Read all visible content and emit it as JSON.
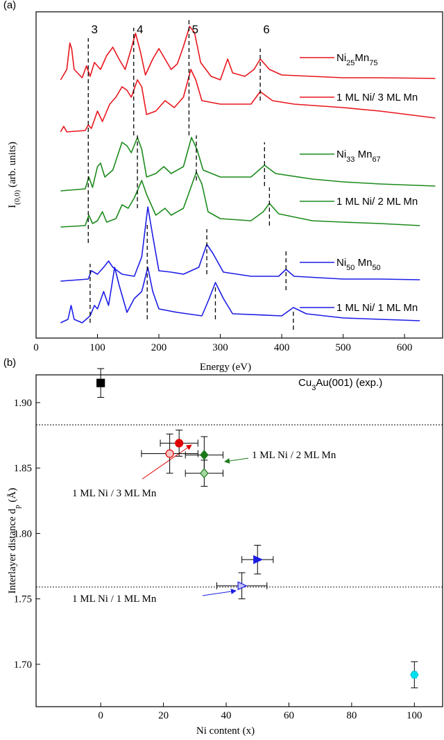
{
  "chart_data": [
    {
      "type": "line",
      "panel": "(a)",
      "xlabel": "Energy (eV)",
      "ylabel": "I(0,0) (arb. units)",
      "xlim": [
        0,
        662
      ],
      "ylim": [
        0,
        470
      ],
      "xticks": [
        0,
        100,
        200,
        300,
        400,
        500,
        600
      ],
      "series": [
        {
          "name": "Ni25Mn75",
          "color": "#e8141b",
          "x": [
            40,
            50,
            55,
            58,
            62,
            75,
            82,
            88,
            95,
            105,
            115,
            125,
            135,
            145,
            155,
            162,
            170,
            178,
            190,
            200,
            210,
            220,
            230,
            240,
            250,
            258,
            268,
            285,
            300,
            312,
            320,
            340,
            355,
            365,
            380,
            400,
            450,
            500,
            560,
            650
          ],
          "values": [
            372,
            387,
            425,
            417,
            387,
            375,
            392,
            377,
            397,
            387,
            407,
            419,
            402,
            387,
            417,
            439,
            412,
            379,
            402,
            417,
            402,
            387,
            395,
            420,
            449,
            440,
            397,
            377,
            372,
            402,
            382,
            377,
            387,
            402,
            387,
            379,
            377,
            375,
            375,
            374
          ]
        },
        {
          "name": "1 ML Ni/ 3 ML Mn",
          "color": "#e8141b",
          "x": [
            40,
            45,
            50,
            80,
            85,
            90,
            100,
            108,
            120,
            130,
            140,
            148,
            155,
            165,
            172,
            180,
            195,
            210,
            225,
            240,
            252,
            260,
            270,
            300,
            350,
            365,
            385,
            420,
            500,
            560,
            650
          ],
          "values": [
            297,
            305,
            297,
            299,
            307,
            302,
            327,
            312,
            337,
            347,
            362,
            357,
            347,
            372,
            362,
            322,
            327,
            342,
            332,
            347,
            387,
            372,
            342,
            337,
            337,
            355,
            342,
            337,
            332,
            327,
            317
          ]
        },
        {
          "name": "Ni33 Mn67",
          "color": "#1a8a1a",
          "x": [
            40,
            80,
            86,
            92,
            100,
            105,
            112,
            125,
            140,
            148,
            155,
            165,
            172,
            180,
            195,
            208,
            220,
            240,
            253,
            262,
            272,
            300,
            350,
            372,
            390,
            450,
            500,
            560,
            650
          ],
          "values": [
            212,
            215,
            232,
            217,
            247,
            252,
            232,
            242,
            282,
            277,
            267,
            289,
            272,
            232,
            237,
            247,
            237,
            247,
            289,
            272,
            242,
            232,
            232,
            249,
            237,
            229,
            225,
            222,
            219
          ]
        },
        {
          "name": "1 ML Ni/ 2 ML Mn",
          "color": "#1a8a1a",
          "x": [
            40,
            80,
            86,
            92,
            100,
            108,
            115,
            130,
            140,
            150,
            160,
            172,
            180,
            195,
            210,
            220,
            240,
            261,
            270,
            280,
            300,
            350,
            370,
            380,
            395,
            450,
            500,
            560,
            625
          ],
          "values": [
            160,
            162,
            177,
            165,
            169,
            182,
            167,
            172,
            192,
            187,
            202,
            227,
            207,
            177,
            187,
            177,
            187,
            239,
            222,
            182,
            172,
            169,
            182,
            194,
            179,
            169,
            167,
            165,
            162
          ]
        },
        {
          "name": "Ni50 Mn50",
          "color": "#1c1ce6",
          "x": [
            40,
            85,
            90,
            100,
            110,
            118,
            125,
            140,
            160,
            172,
            182,
            190,
            200,
            220,
            240,
            265,
            278,
            288,
            305,
            350,
            395,
            407,
            420,
            500,
            560,
            625
          ],
          "values": [
            82,
            85,
            97,
            92,
            102,
            111,
            102,
            92,
            89,
            117,
            189,
            147,
            97,
            95,
            92,
            102,
            135,
            122,
            95,
            89,
            89,
            99,
            89,
            85,
            85,
            84
          ]
        },
        {
          "name": "1 ML Ni/ 1 ML Mn",
          "color": "#1c1ce6",
          "x": [
            40,
            52,
            57,
            62,
            75,
            88,
            95,
            100,
            110,
            118,
            128,
            135,
            148,
            160,
            172,
            182,
            190,
            200,
            230,
            270,
            282,
            292,
            305,
            320,
            400,
            419,
            440,
            500,
            560,
            625
          ],
          "values": [
            22,
            27,
            47,
            27,
            22,
            32,
            47,
            42,
            67,
            47,
            102,
            77,
            37,
            57,
            67,
            102,
            67,
            42,
            37,
            32,
            57,
            80,
            57,
            35,
            32,
            44,
            35,
            29,
            27,
            25
          ]
        }
      ],
      "peaks": [
        {
          "label": "3",
          "segments": [
            {
              "x": 85,
              "y": [
                137,
                432
              ]
            },
            {
              "x": 88,
              "y": [
                22,
                107
              ]
            }
          ]
        },
        {
          "label": "4",
          "segments": [
            {
              "x": 159,
              "y": [
                292,
                447
              ]
            },
            {
              "x": 165,
              "y": [
                187,
                292
              ]
            },
            {
              "x": 181,
              "y": [
                27,
                167
              ]
            }
          ]
        },
        {
          "label": "5",
          "segments": [
            {
              "x": 249,
              "y": [
                292,
                459
              ]
            },
            {
              "x": 261,
              "y": [
                227,
                292
              ]
            },
            {
              "x": 278,
              "y": [
                92,
                157
              ]
            },
            {
              "x": 292,
              "y": [
                27,
                77
              ]
            }
          ]
        },
        {
          "label": "6",
          "segments": [
            {
              "x": 365,
              "y": [
                342,
                417
              ]
            },
            {
              "x": 372,
              "y": [
                219,
                282
              ]
            },
            {
              "x": 380,
              "y": [
                162,
                217
              ]
            },
            {
              "x": 407,
              "y": [
                69,
                129
              ]
            },
            {
              "x": 419,
              "y": [
                12,
                42
              ]
            }
          ]
        }
      ]
    },
    {
      "type": "scatter",
      "panel": "(b)",
      "xlabel": "Ni content (x)",
      "ylabel": "Interlayer distance dp (Å)",
      "xlim": [
        -20.6,
        109
      ],
      "ylim": [
        1.6676,
        1.9212
      ],
      "xticks": [
        0,
        20,
        40,
        60,
        80,
        100
      ],
      "yticks": [
        {
          "value": 1.7,
          "label": "1.70"
        },
        1.75,
        {
          "value": 1.8,
          "label": "1.80"
        },
        1.85,
        {
          "value": 1.9,
          "label": "1.90"
        }
      ],
      "hlines": [
        1.883,
        1.759
      ],
      "annotations": [
        "Cu3Au(001) (exp.)",
        "1 ML Ni / 2 ML Mn",
        "1 ML Ni / 3 ML Mn",
        "1 ML Ni / 1 ML Mn"
      ],
      "series": [
        {
          "marker": "square",
          "color": "#000000",
          "fill": "#000000",
          "x": [
            0
          ],
          "values": [
            1.915
          ],
          "yerr": [
            0.011
          ]
        },
        {
          "marker": "circle",
          "color": "#e00000",
          "fill": "#e00000",
          "x": [
            25
          ],
          "values": [
            1.869
          ],
          "xerr": [
            6
          ],
          "yerr": [
            0.01
          ]
        },
        {
          "marker": "circle",
          "color": "#e00000",
          "fill": "#f7c4c4",
          "x": [
            22
          ],
          "values": [
            1.861
          ],
          "xerr": [
            9
          ],
          "yerr": [
            0.015
          ]
        },
        {
          "marker": "diamond",
          "color": "#1a7a1a",
          "fill": "#1a7a1a",
          "x": [
            33
          ],
          "values": [
            1.86
          ],
          "xerr": [
            6
          ],
          "yerr": [
            0.014
          ]
        },
        {
          "marker": "diamond",
          "color": "#1a7a1a",
          "fill": "#a8d8a8",
          "x": [
            33
          ],
          "values": [
            1.846
          ],
          "xerr": [
            6
          ],
          "yerr": [
            0.01
          ]
        },
        {
          "marker": "triangle",
          "color": "#1c1ce6",
          "fill": "#1c1ce6",
          "x": [
            50
          ],
          "values": [
            1.78
          ],
          "xerr": [
            5
          ],
          "yerr": [
            0.011
          ]
        },
        {
          "marker": "triangle",
          "color": "#1c1ce6",
          "fill": "#c4c4f7",
          "x": [
            45
          ],
          "values": [
            1.76
          ],
          "xerr": [
            8
          ],
          "yerr": [
            0.01
          ]
        },
        {
          "marker": "hexagon",
          "color": "#00c8d8",
          "fill": "#00e0f0",
          "x": [
            100
          ],
          "values": [
            1.692
          ],
          "yerr": [
            0.01
          ]
        }
      ]
    }
  ]
}
